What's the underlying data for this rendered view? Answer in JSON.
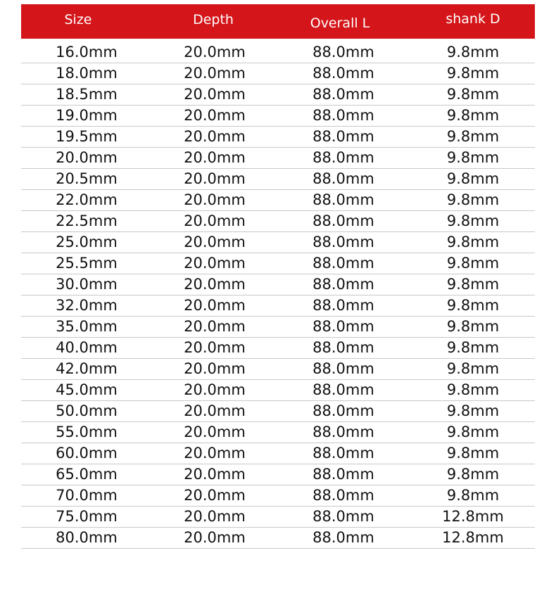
{
  "table": {
    "headers": [
      "Size",
      "Depth",
      "Overall L",
      "shank D"
    ],
    "header_color": "#d41519",
    "rows": [
      [
        "16.0mm",
        "20.0mm",
        "88.0mm",
        "9.8mm"
      ],
      [
        "18.0mm",
        "20.0mm",
        "88.0mm",
        "9.8mm"
      ],
      [
        "18.5mm",
        "20.0mm",
        "88.0mm",
        "9.8mm"
      ],
      [
        "19.0mm",
        "20.0mm",
        "88.0mm",
        "9.8mm"
      ],
      [
        "19.5mm",
        "20.0mm",
        "88.0mm",
        "9.8mm"
      ],
      [
        "20.0mm",
        "20.0mm",
        "88.0mm",
        "9.8mm"
      ],
      [
        "20.5mm",
        "20.0mm",
        "88.0mm",
        "9.8mm"
      ],
      [
        "22.0mm",
        "20.0mm",
        "88.0mm",
        "9.8mm"
      ],
      [
        "22.5mm",
        "20.0mm",
        "88.0mm",
        "9.8mm"
      ],
      [
        "25.0mm",
        "20.0mm",
        "88.0mm",
        "9.8mm"
      ],
      [
        "25.5mm",
        "20.0mm",
        "88.0mm",
        "9.8mm"
      ],
      [
        "30.0mm",
        "20.0mm",
        "88.0mm",
        "9.8mm"
      ],
      [
        "32.0mm",
        "20.0mm",
        "88.0mm",
        "9.8mm"
      ],
      [
        "35.0mm",
        "20.0mm",
        "88.0mm",
        "9.8mm"
      ],
      [
        "40.0mm",
        "20.0mm",
        "88.0mm",
        "9.8mm"
      ],
      [
        "42.0mm",
        "20.0mm",
        "88.0mm",
        "9.8mm"
      ],
      [
        "45.0mm",
        "20.0mm",
        "88.0mm",
        "9.8mm"
      ],
      [
        "50.0mm",
        "20.0mm",
        "88.0mm",
        "9.8mm"
      ],
      [
        "55.0mm",
        "20.0mm",
        "88.0mm",
        "9.8mm"
      ],
      [
        "60.0mm",
        "20.0mm",
        "88.0mm",
        "9.8mm"
      ],
      [
        "65.0mm",
        "20.0mm",
        "88.0mm",
        "9.8mm"
      ],
      [
        "70.0mm",
        "20.0mm",
        "88.0mm",
        "9.8mm"
      ],
      [
        "75.0mm",
        "20.0mm",
        "88.0mm",
        "12.8mm"
      ],
      [
        "80.0mm",
        "20.0mm",
        "88.0mm",
        "12.8mm"
      ]
    ]
  }
}
